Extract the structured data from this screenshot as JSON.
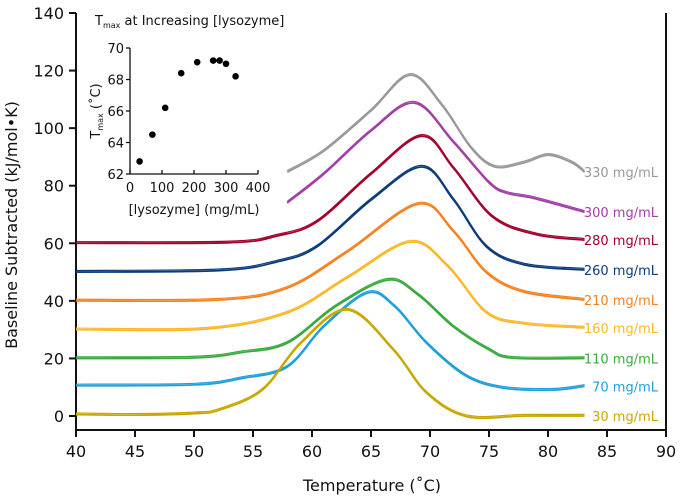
{
  "chart_data": [
    {
      "type": "line",
      "xlabel": "Temperature (˚C)",
      "ylabel": "Baseline Subtracted (kJ/mol•K)",
      "xlim": [
        40,
        90
      ],
      "ylim": [
        0,
        140
      ],
      "xticks": [
        40,
        45,
        50,
        55,
        60,
        65,
        70,
        75,
        80,
        85,
        90
      ],
      "yticks": [
        0,
        20,
        40,
        60,
        80,
        100,
        120,
        140
      ],
      "grid": false,
      "legend": "inline labels at right end of each curve",
      "series": [
        {
          "name": "330 mg/mL",
          "color": "#999999",
          "points": [
            [
              57.9,
              84.7
            ],
            [
              61,
              92
            ],
            [
              65,
              106
            ],
            [
              68.3,
              118.4
            ],
            [
              71,
              108
            ],
            [
              73.5,
              93
            ],
            [
              75.5,
              86.5
            ],
            [
              78,
              88
            ],
            [
              80,
              90.6
            ],
            [
              82,
              88
            ],
            [
              83.1,
              84.7
            ]
          ]
        },
        {
          "name": "300 mg/mL",
          "color": "#a23ea8",
          "points": [
            [
              57.9,
              74
            ],
            [
              61,
              84
            ],
            [
              65,
              99
            ],
            [
              68.7,
              108.7
            ],
            [
              72,
              95
            ],
            [
              75,
              81
            ],
            [
              76.5,
              77.4
            ],
            [
              78.7,
              75.7
            ],
            [
              83.1,
              70.8
            ]
          ]
        },
        {
          "name": "280 mg/mL",
          "color": "#a3002c",
          "points": [
            [
              40,
              60
            ],
            [
              53,
              60.2
            ],
            [
              57,
              62.5
            ],
            [
              60.4,
              67.4
            ],
            [
              65,
              84
            ],
            [
              69.3,
              97.2
            ],
            [
              72,
              86
            ],
            [
              75.3,
              69.1
            ],
            [
              79,
              63
            ],
            [
              83.1,
              61.1
            ]
          ]
        },
        {
          "name": "260 mg/mL",
          "color": "#0c3b7a",
          "points": [
            [
              40,
              50
            ],
            [
              52.2,
              50.5
            ],
            [
              57,
              53.5
            ],
            [
              60.4,
              58.7
            ],
            [
              65,
              75
            ],
            [
              69.3,
              86.5
            ],
            [
              72,
              75
            ],
            [
              74.8,
              58.7
            ],
            [
              78,
              52.5
            ],
            [
              83.1,
              50.7
            ]
          ]
        },
        {
          "name": "210 mg/mL",
          "color": "#f5821f",
          "points": [
            [
              40,
              40
            ],
            [
              52.2,
              40.3
            ],
            [
              57.9,
              44.4
            ],
            [
              63,
              57
            ],
            [
              69,
              73.6
            ],
            [
              72,
              64
            ],
            [
              74.8,
              49.7
            ],
            [
              78,
              43
            ],
            [
              83.1,
              40.3
            ]
          ]
        },
        {
          "name": "160 mg/mL",
          "color": "#fbb829",
          "points": [
            [
              40,
              30
            ],
            [
              51,
              30.2
            ],
            [
              57.9,
              35.8
            ],
            [
              63,
              48
            ],
            [
              68.3,
              60.4
            ],
            [
              71.5,
              52
            ],
            [
              74.8,
              35.8
            ],
            [
              78,
              32
            ],
            [
              83.1,
              30.6
            ]
          ]
        },
        {
          "name": "110 mg/mL",
          "color": "#3aaa3e",
          "points": [
            [
              40,
              20
            ],
            [
              50,
              20.2
            ],
            [
              54,
              22
            ],
            [
              57.9,
              25.3
            ],
            [
              62,
              38
            ],
            [
              66.4,
              47.2
            ],
            [
              69,
              42
            ],
            [
              72,
              30.9
            ],
            [
              75,
              23
            ],
            [
              77,
              20.1
            ],
            [
              83.1,
              20
            ]
          ]
        },
        {
          "name": "70 mg/mL",
          "color": "#1f9fdb",
          "points": [
            [
              40,
              10.5
            ],
            [
              50,
              10.8
            ],
            [
              54,
              13
            ],
            [
              57.9,
              17
            ],
            [
              61,
              31
            ],
            [
              64.7,
              42.7
            ],
            [
              67,
              38
            ],
            [
              69.7,
              25.3
            ],
            [
              73,
              14
            ],
            [
              76.2,
              9.7
            ],
            [
              80.4,
              9
            ],
            [
              83.1,
              10.3
            ]
          ]
        },
        {
          "name": "30 mg/mL",
          "color": "#c9a700",
          "points": [
            [
              40,
              0.5
            ],
            [
              45,
              0.3
            ],
            [
              50,
              0.8
            ],
            [
              52.2,
              2.1
            ],
            [
              55.8,
              9
            ],
            [
              59,
              25
            ],
            [
              63,
              36.8
            ],
            [
              66.9,
              22.9
            ],
            [
              69.7,
              8
            ],
            [
              73.1,
              -0.2
            ],
            [
              78,
              0
            ],
            [
              83.1,
              0
            ]
          ]
        }
      ]
    },
    {
      "type": "scatter",
      "title": "T_max at Increasing [lysozyme]",
      "title_main": "T",
      "title_sub": "max",
      "title_rest": " at Increasing [lysozyme]",
      "xlabel": "[lysozyme] (mg/mL)",
      "ylabel_main": "T",
      "ylabel_sub": "max",
      "ylabel_rest": " (˚C)",
      "xlim": [
        0,
        400
      ],
      "ylim": [
        62,
        70
      ],
      "xticks": [
        0,
        100,
        200,
        300,
        400
      ],
      "yticks": [
        62,
        64,
        66,
        68,
        70
      ],
      "x": [
        30,
        70,
        110,
        160,
        210,
        260,
        280,
        300,
        330
      ],
      "y": [
        62.8,
        64.5,
        66.2,
        68.4,
        69.1,
        69.2,
        69.2,
        69.0,
        68.2
      ]
    }
  ]
}
